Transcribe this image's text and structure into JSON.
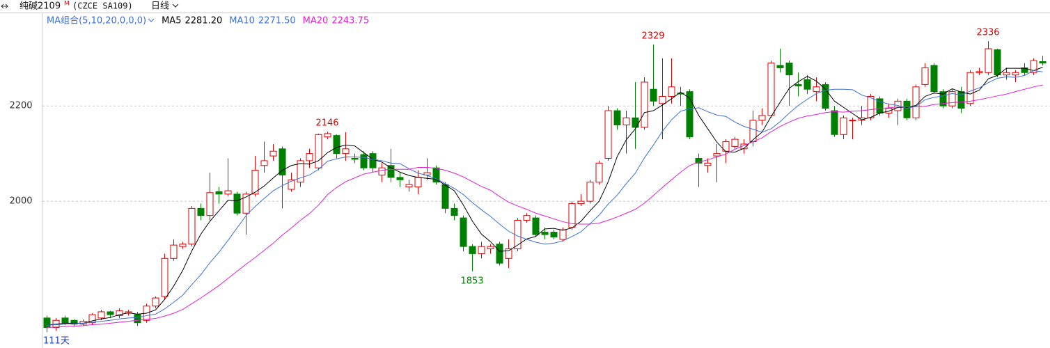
{
  "header": {
    "symbol": "纯碱2109",
    "marker": "M",
    "code": "(CZCE SA109)",
    "period": "日线"
  },
  "chart_data": {
    "type": "candlestick",
    "title": "MA组合(5,10,20,0,0,0)",
    "footer": "111天",
    "up_color": "#e00000",
    "down_color": "#008000",
    "open": [
      1755,
      1735,
      1755,
      1750,
      1742,
      1745,
      1755,
      1768,
      1760,
      1765,
      1762,
      1750,
      1780,
      1800,
      1880,
      1905,
      1910,
      1985,
      1970,
      2020,
      2015,
      2015,
      1975,
      2015,
      2075,
      2095,
      2110,
      2025,
      2040,
      2085,
      2070,
      2135,
      2138,
      2100,
      2090,
      2098,
      2100,
      2055,
      2075,
      2050,
      2030,
      2030,
      2055,
      2070,
      2035,
      1985,
      1965,
      1905,
      1890,
      1900,
      1910,
      1880,
      1900,
      1960,
      1965,
      1935,
      1935,
      1920,
      1945,
      1995,
      2000,
      2040,
      2090,
      2190,
      2160,
      2175,
      2155,
      2235,
      2205,
      2220,
      2227,
      2230,
      2090,
      2075,
      2095,
      2105,
      2115,
      2110,
      2125,
      2170,
      2180,
      2285,
      2290,
      2245,
      2255,
      2230,
      2245,
      2190,
      2140,
      2170,
      2170,
      2175,
      2215,
      2185,
      2190,
      2210,
      2175,
      2245,
      2285,
      2230,
      2200,
      2230,
      2205,
      2270,
      2270,
      2318,
      2265,
      2265,
      2280,
      2270,
      2293
    ],
    "high": [
      1760,
      1755,
      1760,
      1752,
      1752,
      1765,
      1772,
      1770,
      1775,
      1772,
      1768,
      1785,
      1800,
      1890,
      1920,
      1915,
      1990,
      1995,
      2060,
      2030,
      2090,
      2020,
      2020,
      2095,
      2125,
      2120,
      2115,
      2060,
      2090,
      2110,
      2142,
      2146,
      2140,
      2145,
      2100,
      2105,
      2105,
      2080,
      2110,
      2060,
      2045,
      2065,
      2090,
      2075,
      2040,
      1995,
      1970,
      1910,
      1915,
      1910,
      1915,
      1920,
      1965,
      1975,
      1970,
      1945,
      1940,
      1945,
      2000,
      2015,
      2045,
      2085,
      2200,
      2195,
      2190,
      2250,
      2260,
      2329,
      2300,
      2300,
      2240,
      2235,
      2100,
      2090,
      2120,
      2130,
      2135,
      2130,
      2190,
      2195,
      2295,
      2320,
      2295,
      2270,
      2265,
      2260,
      2250,
      2200,
      2180,
      2175,
      2200,
      2225,
      2220,
      2205,
      2215,
      2215,
      2245,
      2290,
      2290,
      2235,
      2235,
      2240,
      2275,
      2280,
      2336,
      2320,
      2280,
      2275,
      2290,
      2300,
      2305
    ],
    "low": [
      1725,
      1728,
      1740,
      1738,
      1738,
      1740,
      1750,
      1755,
      1755,
      1760,
      1738,
      1745,
      1775,
      1795,
      1875,
      1900,
      1905,
      1960,
      1960,
      1995,
      2010,
      1970,
      1930,
      2010,
      2060,
      2085,
      1985,
      2020,
      2030,
      2070,
      2065,
      2130,
      2090,
      2085,
      2080,
      2065,
      2060,
      2040,
      2040,
      2030,
      2020,
      2015,
      2045,
      2035,
      1975,
      1960,
      1895,
      1853,
      1880,
      1890,
      1865,
      1860,
      1895,
      1955,
      1925,
      1920,
      1920,
      1915,
      1940,
      1990,
      1995,
      2035,
      2085,
      2150,
      2100,
      2110,
      2150,
      2200,
      2130,
      2205,
      2200,
      2130,
      2030,
      2060,
      2040,
      2080,
      2110,
      2100,
      2115,
      2160,
      2175,
      2270,
      2200,
      2220,
      2225,
      2210,
      2190,
      2135,
      2130,
      2130,
      2160,
      2170,
      2180,
      2175,
      2160,
      2170,
      2170,
      2240,
      2225,
      2195,
      2195,
      2185,
      2200,
      2265,
      2265,
      2260,
      2255,
      2250,
      2265,
      2265,
      2285
    ],
    "close": [
      1735,
      1750,
      1745,
      1742,
      1748,
      1762,
      1768,
      1762,
      1770,
      1768,
      1745,
      1780,
      1797,
      1880,
      1908,
      1910,
      1985,
      1970,
      2018,
      2015,
      2022,
      1975,
      2015,
      2065,
      2085,
      2105,
      2055,
      2045,
      2085,
      2100,
      2140,
      2142,
      2100,
      2110,
      2088,
      2070,
      2070,
      2070,
      2050,
      2045,
      2035,
      2050,
      2060,
      2040,
      1985,
      1970,
      1905,
      1890,
      1905,
      1905,
      1870,
      1900,
      1960,
      1970,
      1930,
      1930,
      1925,
      1940,
      1995,
      2000,
      2040,
      2080,
      2190,
      2160,
      2175,
      2155,
      2250,
      2210,
      2220,
      2240,
      2225,
      2135,
      2080,
      2080,
      2100,
      2125,
      2130,
      2120,
      2170,
      2180,
      2290,
      2280,
      2265,
      2242,
      2235,
      2240,
      2195,
      2140,
      2175,
      2170,
      2175,
      2220,
      2185,
      2195,
      2210,
      2175,
      2240,
      2280,
      2230,
      2200,
      2230,
      2195,
      2270,
      2272,
      2320,
      2265,
      2270,
      2270,
      2270,
      2295,
      2290
    ],
    "series": [
      {
        "name": "MA5",
        "color": "#000000",
        "value_label": "2281.20",
        "values": [
          1740,
          1742,
          1744,
          1744,
          1744,
          1749,
          1753,
          1756,
          1762,
          1766,
          1763,
          1765,
          1772,
          1794,
          1822,
          1855,
          1896,
          1931,
          1958,
          1980,
          2002,
          2001,
          2009,
          2019,
          2032,
          2049,
          2065,
          2075,
          2079,
          2078,
          2085,
          2102,
          2113,
          2118,
          2116,
          2102,
          2088,
          2082,
          2070,
          2061,
          2054,
          2050,
          2048,
          2046,
          2034,
          2022,
          1992,
          1958,
          1931,
          1915,
          1895,
          1896,
          1908,
          1921,
          1926,
          1942,
          1943,
          1939,
          1944,
          1958,
          1980,
          2000,
          2041,
          2094,
          2129,
          2152,
          2186,
          2190,
          2202,
          2215,
          2229,
          2216,
          2180,
          2152,
          2124,
          2104,
          2103,
          2111,
          2129,
          2145,
          2178,
          2208,
          2237,
          2251,
          2262,
          2252,
          2235,
          2210,
          2197,
          2184,
          2171,
          2176,
          2185,
          2189,
          2197,
          2197,
          2201,
          2220,
          2227,
          2225,
          2236,
          2229,
          2225,
          2233,
          2257,
          2264,
          2279,
          2279,
          2279,
          2274,
          2281.2
        ]
      },
      {
        "name": "MA10",
        "color": "#3d6fd8",
        "value_label": "2271.50",
        "values": [
          1740,
          1741,
          1742,
          1743,
          1744,
          1746,
          1748,
          1750,
          1753,
          1755,
          1756,
          1760,
          1763,
          1774,
          1788,
          1803,
          1825,
          1846,
          1871,
          1893,
          1918,
          1944,
          1970,
          1989,
          2006,
          2022,
          2033,
          2042,
          2049,
          2055,
          2067,
          2084,
          2089,
          2093,
          2093,
          2092,
          2088,
          2085,
          2080,
          2079,
          2068,
          2059,
          2054,
          2047,
          2037,
          2027,
          2014,
          1997,
          1982,
          1968,
          1952,
          1937,
          1927,
          1920,
          1914,
          1910,
          1912,
          1917,
          1926,
          1936,
          1953,
          1971,
          1994,
          2013,
          2037,
          2059,
          2091,
          2118,
          2147,
          2171,
          2189,
          2194,
          2196,
          2188,
          2181,
          2178,
          2166,
          2157,
          2151,
          2145,
          2152,
          2167,
          2185,
          2201,
          2214,
          2226,
          2233,
          2235,
          2235,
          2234,
          2223,
          2217,
          2209,
          2204,
          2201,
          2195,
          2199,
          2213,
          2218,
          2221,
          2226,
          2223,
          2231,
          2238,
          2249,
          2258,
          2261,
          2260,
          2264,
          2274,
          2271.5
        ]
      },
      {
        "name": "MA20",
        "color": "#e020d0",
        "value_label": "2243.75",
        "values": [
          1735,
          1736,
          1737,
          1738,
          1739,
          1741,
          1742,
          1744,
          1746,
          1748,
          1750,
          1752,
          1754,
          1759,
          1765,
          1773,
          1785,
          1797,
          1810,
          1823,
          1838,
          1853,
          1868,
          1882,
          1897,
          1912,
          1929,
          1944,
          1960,
          1974,
          1992,
          2014,
          2029,
          2041,
          2049,
          2057,
          2061,
          2065,
          2067,
          2067,
          2067,
          2071,
          2071,
          2069,
          2065,
          2059,
          2051,
          2041,
          2031,
          2023,
          2010,
          1998,
          1990,
          1983,
          1975,
          1969,
          1963,
          1957,
          1953,
          1952,
          1952,
          1954,
          1960,
          1967,
          1975,
          1983,
          1996,
          2012,
          2029,
          2045,
          2061,
          2075,
          2082,
          2087,
          2093,
          2099,
          2109,
          2117,
          2125,
          2133,
          2146,
          2157,
          2166,
          2174,
          2179,
          2182,
          2186,
          2188,
          2187,
          2189,
          2190,
          2192,
          2195,
          2196,
          2198,
          2198,
          2198,
          2199,
          2203,
          2205,
          2207,
          2208,
          2210,
          2213,
          2217,
          2221,
          2225,
          2230,
          2235,
          2240,
          2243.75
        ]
      }
    ],
    "annotations": [
      {
        "value": 2146,
        "color": "#e00000"
      },
      {
        "value": 2329,
        "color": "#e00000"
      },
      {
        "value": 2336,
        "color": "#e00000"
      },
      {
        "value": 1853,
        "color": "#008000"
      }
    ],
    "ylim": [
      1692,
      2396
    ],
    "yticks": [
      2000,
      2200
    ],
    "grid": true
  }
}
